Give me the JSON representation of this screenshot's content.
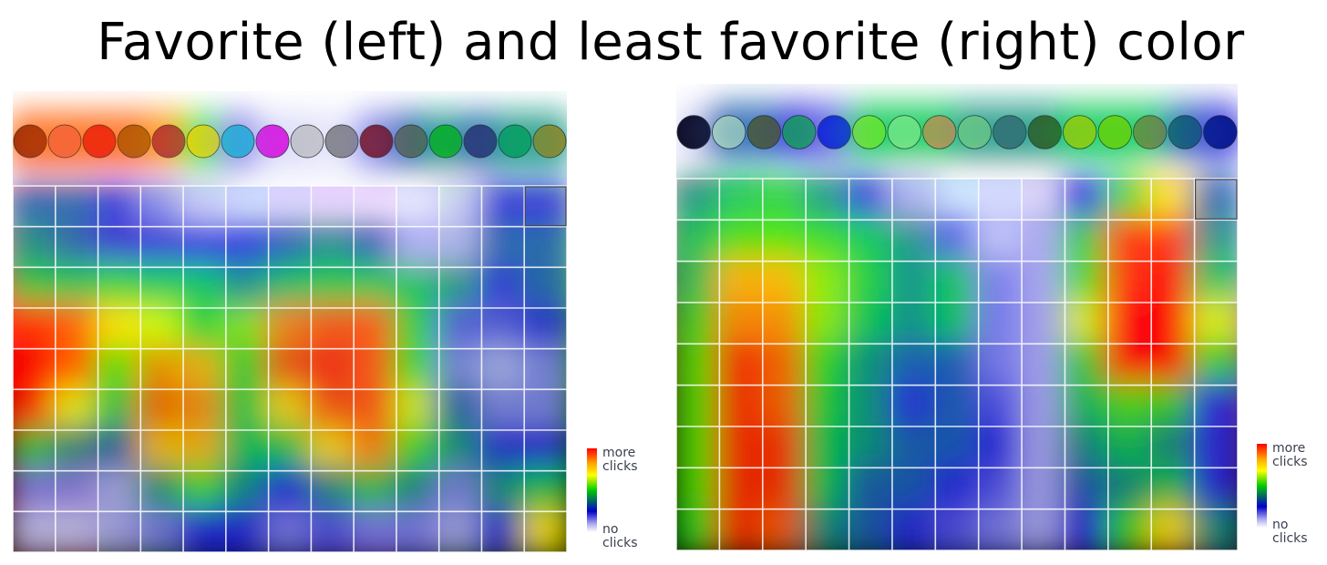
{
  "title": "Favorite (left) and least favorite (right) color",
  "legend": {
    "top_label": "more\nclicks",
    "bottom_label": "no\nclicks"
  },
  "chart_data": [
    {
      "type": "heatmap",
      "title": "",
      "xlabel": "",
      "ylabel": "",
      "grid": true,
      "legend_placement": "bottom-right",
      "swatch_row": [
        "#8a2a10",
        "#f07055",
        "#e81a1a",
        "#9a5a10",
        "#a01848",
        "#ffd800",
        "#10b8d8",
        "#e010e0",
        "#c8c8c8",
        "#808080",
        "#7a0000",
        "#686848",
        "#10c010",
        "#3a2a70",
        "#10a860",
        "#b08a20"
      ],
      "grid_colors": [
        [
          "#ffcccc",
          "#ffe0c8",
          "#ffffcc",
          "#e8ffe0",
          "#d0e8ff",
          "#c8d8ff",
          "#d8d0ff",
          "#e8d0ff",
          "#f0d8ff",
          "#e0e0ff",
          "#e0ffe0",
          "#d8f0d0",
          "#c8e8c0"
        ],
        [
          "#ff9999",
          "#ffc899",
          "#ffff99",
          "#c8ffc0",
          "#a0d0ff",
          "#90c0ff",
          "#a8a8ff",
          "#c8a8ff",
          "#e0b0ff",
          "#c8c8ff",
          "#c0f0c0",
          "#b0e0b0",
          "#90d890"
        ],
        [
          "#ff6666",
          "#ffa866",
          "#e8e866",
          "#90e890",
          "#70b8f0",
          "#6098f0",
          "#7878f0",
          "#a878f0",
          "#d080f8",
          "#a0a0f0",
          "#90d890",
          "#88c888",
          "#68c068"
        ],
        [
          "#ff3030",
          "#ff7a30",
          "#c8c830",
          "#50d050",
          "#3098e0",
          "#3070e0",
          "#4848e0",
          "#8a48e0",
          "#c048f0",
          "#7878e0",
          "#60c060",
          "#58a858",
          "#40a040"
        ],
        [
          "#e00000",
          "#ff5000",
          "#a0a000",
          "#20b020",
          "#1078c0",
          "#1050c0",
          "#2020c0",
          "#6820c0",
          "#a020d0",
          "#5050c0",
          "#309830",
          "#308830",
          "#208020"
        ],
        [
          "#b00000",
          "#d83000",
          "#787800",
          "#109010",
          "#0858a0",
          "#0838a0",
          "#1010a0",
          "#4810a0",
          "#8010b0",
          "#3030a0",
          "#187818",
          "#186818",
          "#106010"
        ],
        [
          "#800000",
          "#a81800",
          "#505000",
          "#087008",
          "#054080",
          "#052880",
          "#080880",
          "#300880",
          "#600890",
          "#202080",
          "#0c580c",
          "#0c480c",
          "#084808"
        ],
        [
          "#500000",
          "#701000",
          "#303000",
          "#045004",
          "#032860",
          "#031860",
          "#040460",
          "#200460",
          "#400470",
          "#101060",
          "#083808",
          "#083008",
          "#043004"
        ],
        [
          "#280000",
          "#380800",
          "#181800",
          "#022802",
          "#011430",
          "#010c30",
          "#020230",
          "#100230",
          "#200238",
          "#080830",
          "#041c04",
          "#041804",
          "#021802"
        ]
      ],
      "clicks": [
        [
          0.35,
          0.35,
          0.3,
          0.2,
          0.1,
          0.05,
          0.05,
          0.05,
          0.05,
          0.0,
          0.1,
          0.3,
          0.3
        ],
        [
          0.4,
          0.35,
          0.3,
          0.3,
          0.3,
          0.3,
          0.35,
          0.4,
          0.35,
          0.15,
          0.15,
          0.35,
          0.35
        ],
        [
          0.5,
          0.45,
          0.5,
          0.45,
          0.45,
          0.4,
          0.45,
          0.5,
          0.5,
          0.45,
          0.4,
          0.3,
          0.35
        ],
        [
          0.95,
          0.9,
          0.75,
          0.7,
          0.55,
          0.65,
          0.85,
          0.9,
          0.9,
          0.55,
          0.25,
          0.25,
          0.3
        ],
        [
          1.0,
          0.9,
          0.6,
          0.85,
          0.8,
          0.55,
          0.9,
          0.95,
          0.9,
          0.6,
          0.2,
          0.15,
          0.2
        ],
        [
          0.95,
          0.7,
          0.45,
          0.9,
          0.85,
          0.5,
          0.75,
          0.9,
          0.9,
          0.7,
          0.35,
          0.2,
          0.2
        ],
        [
          0.5,
          0.4,
          0.35,
          0.8,
          0.8,
          0.45,
          0.5,
          0.75,
          0.85,
          0.6,
          0.4,
          0.3,
          0.3
        ],
        [
          0.2,
          0.2,
          0.15,
          0.4,
          0.6,
          0.4,
          0.3,
          0.4,
          0.5,
          0.4,
          0.2,
          0.4,
          0.45
        ],
        [
          0.1,
          0.1,
          0.15,
          0.2,
          0.3,
          0.3,
          0.2,
          0.25,
          0.2,
          0.2,
          0.15,
          0.3,
          0.75
        ]
      ],
      "swatch_clicks": [
        0.9,
        0.9,
        0.9,
        0.9,
        0.85,
        0.6,
        0.2,
        0.15,
        0.15,
        0.1,
        0.2,
        0.35,
        0.4,
        0.35,
        0.4,
        0.4
      ]
    },
    {
      "type": "heatmap",
      "title": "",
      "xlabel": "",
      "ylabel": "",
      "grid": true,
      "legend_placement": "bottom-right",
      "swatch_row": [
        "#000018",
        "#c8f0c8",
        "#606018",
        "#18c040",
        "#0018d8",
        "#90f030",
        "#a0f0a0",
        "#f08a5a",
        "#90d890",
        "#486878",
        "#405018",
        "#c8d000",
        "#90d800",
        "#908040",
        "#18606a",
        "#001878"
      ],
      "grid_colors": [
        [
          "#e8c8c8",
          "#e8e0c8",
          "#f0f0c8",
          "#e0f0d0",
          "#d8f0e8",
          "#d0f0f8",
          "#c8e8ff",
          "#d0d8ff",
          "#d8d0f8",
          "#e8d0f0",
          "#ffd0e0",
          "#ffd0d0",
          "#f8f0f8"
        ],
        [
          "#d09090",
          "#d0b090",
          "#e0e090",
          "#c0e0a0",
          "#a8e0c8",
          "#a0d8f0",
          "#90c8ff",
          "#a0b0ff",
          "#b0a0f0",
          "#d0a0e0",
          "#ffa0c0",
          "#ffa0a0",
          "#e8d0e8"
        ],
        [
          "#b06060",
          "#b08860",
          "#c8c860",
          "#90c870",
          "#78c8a0",
          "#70b8e0",
          "#60a0f0",
          "#7080f0",
          "#8870e0",
          "#b070d0",
          "#f070a0",
          "#f07070",
          "#d0a8d0"
        ],
        [
          "#904040",
          "#906040",
          "#a0a040",
          "#60a848",
          "#48a878",
          "#4898c8",
          "#3878e0",
          "#4858e0",
          "#6048c8",
          "#9048b8",
          "#e04880",
          "#e04848",
          "#b080b0"
        ],
        [
          "#702020",
          "#704020",
          "#787820",
          "#408828",
          "#288858",
          "#2878a8",
          "#1858c0",
          "#2838c0",
          "#4028a8",
          "#702898",
          "#c02860",
          "#c02828",
          "#905890"
        ],
        [
          "#501010",
          "#502810",
          "#505010",
          "#286818",
          "#186840",
          "#185888",
          "#0840a0",
          "#1820a0",
          "#281888",
          "#501878",
          "#a01840",
          "#a01818",
          "#703870"
        ],
        [
          "#380808",
          "#381808",
          "#383808",
          "#184808",
          "#084828",
          "#083868",
          "#042880",
          "#081080",
          "#180868",
          "#380858",
          "#780828",
          "#780808",
          "#502050"
        ],
        [
          "#200404",
          "#200c04",
          "#202004",
          "#0c2c04",
          "#042c18",
          "#042448",
          "#021860",
          "#040860",
          "#0c0448",
          "#200438",
          "#500418",
          "#500404",
          "#381038"
        ],
        [
          "#100202",
          "#100602",
          "#101002",
          "#061802",
          "#02180c",
          "#021228",
          "#010c38",
          "#020438",
          "#060228",
          "#10021c",
          "#28020c",
          "#280202",
          "#200820"
        ]
      ],
      "clicks": [
        [
          0.4,
          0.45,
          0.5,
          0.4,
          0.3,
          0.15,
          0.05,
          0.05,
          0.05,
          0.3,
          0.55,
          0.75,
          0.35
        ],
        [
          0.45,
          0.6,
          0.6,
          0.55,
          0.45,
          0.4,
          0.25,
          0.1,
          0.15,
          0.5,
          0.95,
          0.95,
          0.4
        ],
        [
          0.45,
          0.8,
          0.8,
          0.65,
          0.5,
          0.4,
          0.45,
          0.2,
          0.15,
          0.6,
          0.95,
          1.0,
          0.45
        ],
        [
          0.55,
          0.85,
          0.85,
          0.65,
          0.45,
          0.4,
          0.45,
          0.2,
          0.15,
          0.7,
          1.0,
          1.0,
          0.7
        ],
        [
          0.6,
          0.95,
          0.9,
          0.55,
          0.4,
          0.35,
          0.35,
          0.2,
          0.15,
          0.55,
          1.0,
          1.0,
          0.55
        ],
        [
          0.6,
          0.95,
          0.9,
          0.5,
          0.4,
          0.3,
          0.35,
          0.25,
          0.15,
          0.45,
          0.6,
          0.55,
          0.3
        ],
        [
          0.6,
          0.95,
          0.95,
          0.45,
          0.4,
          0.35,
          0.35,
          0.3,
          0.15,
          0.4,
          0.45,
          0.4,
          0.3
        ],
        [
          0.6,
          0.95,
          0.95,
          0.45,
          0.35,
          0.35,
          0.3,
          0.25,
          0.15,
          0.35,
          0.4,
          0.45,
          0.3
        ],
        [
          0.55,
          0.95,
          0.9,
          0.4,
          0.35,
          0.3,
          0.25,
          0.2,
          0.15,
          0.3,
          0.55,
          0.75,
          0.4
        ]
      ],
      "swatch_clicks": [
        0.15,
        0.35,
        0.35,
        0.3,
        0.25,
        0.45,
        0.45,
        0.45,
        0.4,
        0.4,
        0.4,
        0.45,
        0.45,
        0.45,
        0.35,
        0.3
      ]
    }
  ]
}
